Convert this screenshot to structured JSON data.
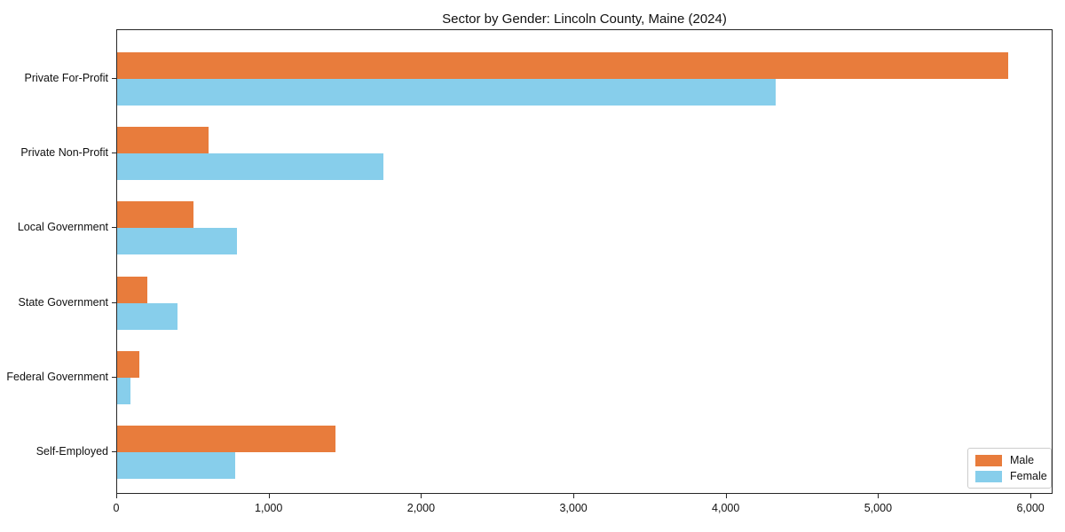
{
  "figure": {
    "background": "#ffffff",
    "frame_color": "#262626"
  },
  "chart_data": {
    "type": "bar",
    "orientation": "horizontal",
    "title": "Sector by Gender: Lincoln County, Maine (2024)",
    "categories": [
      "Private For-Profit",
      "Private Non-Profit",
      "Local Government",
      "State Government",
      "Federal Government",
      "Self-Employed"
    ],
    "series": [
      {
        "name": "Male",
        "color": "#e87c3c",
        "values": [
          5850,
          600,
          500,
          200,
          145,
          1430
        ]
      },
      {
        "name": "Female",
        "color": "#87ceeb",
        "values": [
          4320,
          1750,
          785,
          395,
          85,
          775
        ]
      }
    ],
    "xlabel": "",
    "ylabel": "",
    "xlim": [
      0,
      6145
    ],
    "xticks": {
      "values": [
        0,
        1000,
        2000,
        3000,
        4000,
        5000,
        6000
      ],
      "labels": [
        "0",
        "1,000",
        "2,000",
        "3,000",
        "4,000",
        "5,000",
        "6,000"
      ]
    },
    "grid": false,
    "legend": {
      "position": "lower right",
      "entries": [
        "Male",
        "Female"
      ]
    }
  }
}
